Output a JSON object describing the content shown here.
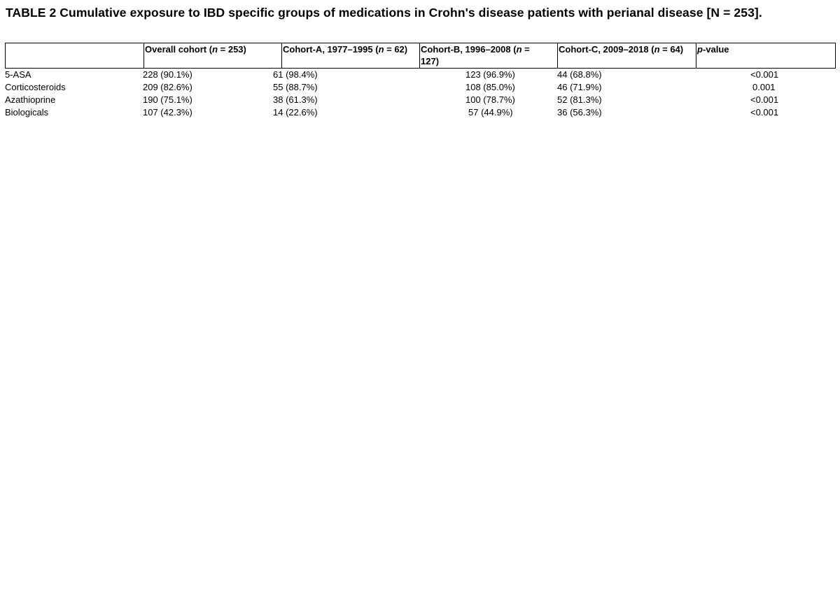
{
  "caption": "TABLE 2 Cumulative exposure to IBD specific groups of medications in Crohn's disease patients with perianal disease [N = 253].",
  "headers": [
    {
      "pre": "",
      "it": "",
      "post": ""
    },
    {
      "pre": "Overall cohort (",
      "it": "n",
      "post": " = 253)"
    },
    {
      "pre": "Cohort-A, 1977–1995 (",
      "it": "n",
      "post": " = 62)"
    },
    {
      "pre": "Cohort-B, 1996–2008 (",
      "it": "n",
      "post": " = 127)"
    },
    {
      "pre": "Cohort-C, 2009–2018 (",
      "it": "n",
      "post": " = 64)"
    },
    {
      "pre": "",
      "it": "p",
      "post": "-value"
    }
  ],
  "rows": [
    {
      "label": "5-ASA",
      "overall": "228 (90.1%)",
      "a": "61 (98.4%)",
      "b": "123 (96.9%)",
      "c": "44 (68.8%)",
      "p": "<0.001"
    },
    {
      "label": "Corticosteroids",
      "overall": "209 (82.6%)",
      "a": "55 (88.7%)",
      "b": "108 (85.0%)",
      "c": "46 (71.9%)",
      "p": "0.001"
    },
    {
      "label": "Azathioprine",
      "overall": "190 (75.1%)",
      "a": "38 (61.3%)",
      "b": "100 (78.7%)",
      "c": "52 (81.3%)",
      "p": "<0.001"
    },
    {
      "label": "Biologicals",
      "overall": "107 (42.3%)",
      "a": "14 (22.6%)",
      "b": "57 (44.9%)",
      "c": "36 (56.3%)",
      "p": "<0.001"
    }
  ]
}
